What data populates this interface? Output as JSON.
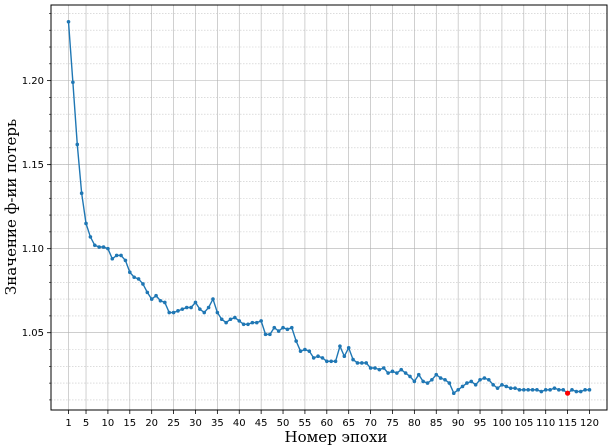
{
  "chart_data": {
    "type": "line",
    "title": "",
    "xlabel": "Номер эпохи",
    "ylabel": "Значение ф-ии потерь",
    "xlim": [
      -3,
      124
    ],
    "ylim": [
      1.004,
      1.245
    ],
    "xticks": [
      1,
      5,
      10,
      15,
      20,
      25,
      30,
      35,
      40,
      45,
      50,
      55,
      60,
      65,
      70,
      75,
      80,
      85,
      90,
      95,
      100,
      105,
      110,
      115,
      120
    ],
    "yticks": [
      1.05,
      1.1,
      1.15,
      1.2
    ],
    "ytick_labels": [
      "1.05",
      "1.10",
      "1.15",
      "1.20"
    ],
    "grid": {
      "major": true,
      "minor": true
    },
    "colors": {
      "line": "#1f77b4",
      "highlight": "#ff0000"
    },
    "series": [
      {
        "name": "",
        "x": [
          1,
          2,
          3,
          4,
          5,
          6,
          7,
          8,
          9,
          10,
          11,
          12,
          13,
          14,
          15,
          16,
          17,
          18,
          19,
          20,
          21,
          22,
          23,
          24,
          25,
          26,
          27,
          28,
          29,
          30,
          31,
          32,
          33,
          34,
          35,
          36,
          37,
          38,
          39,
          40,
          41,
          42,
          43,
          44,
          45,
          46,
          47,
          48,
          49,
          50,
          51,
          52,
          53,
          54,
          55,
          56,
          57,
          58,
          59,
          60,
          61,
          62,
          63,
          64,
          65,
          66,
          67,
          68,
          69,
          70,
          71,
          72,
          73,
          74,
          75,
          76,
          77,
          78,
          79,
          80,
          81,
          82,
          83,
          84,
          85,
          86,
          87,
          88,
          89,
          90,
          91,
          92,
          93,
          94,
          95,
          96,
          97,
          98,
          99,
          100,
          101,
          102,
          103,
          104,
          105,
          106,
          107,
          108,
          109,
          110,
          111,
          112,
          113,
          114,
          115,
          116,
          117,
          118,
          119,
          120
        ],
        "y": [
          1.235,
          1.199,
          1.162,
          1.133,
          1.115,
          1.107,
          1.102,
          1.101,
          1.101,
          1.1,
          1.094,
          1.096,
          1.096,
          1.093,
          1.086,
          1.083,
          1.082,
          1.079,
          1.074,
          1.07,
          1.072,
          1.069,
          1.068,
          1.062,
          1.062,
          1.063,
          1.064,
          1.065,
          1.065,
          1.068,
          1.064,
          1.062,
          1.065,
          1.07,
          1.062,
          1.058,
          1.056,
          1.058,
          1.059,
          1.057,
          1.055,
          1.055,
          1.056,
          1.056,
          1.057,
          1.049,
          1.049,
          1.053,
          1.051,
          1.053,
          1.052,
          1.053,
          1.045,
          1.039,
          1.04,
          1.039,
          1.035,
          1.036,
          1.035,
          1.033,
          1.033,
          1.033,
          1.042,
          1.036,
          1.041,
          1.034,
          1.032,
          1.032,
          1.032,
          1.029,
          1.029,
          1.028,
          1.029,
          1.026,
          1.027,
          1.026,
          1.028,
          1.026,
          1.024,
          1.021,
          1.025,
          1.021,
          1.02,
          1.022,
          1.025,
          1.023,
          1.022,
          1.02,
          1.014,
          1.016,
          1.018,
          1.02,
          1.021,
          1.019,
          1.022,
          1.023,
          1.022,
          1.019,
          1.017,
          1.019,
          1.018,
          1.017,
          1.017,
          1.016,
          1.016,
          1.016,
          1.016,
          1.016,
          1.015,
          1.016,
          1.016,
          1.017,
          1.016,
          1.016,
          1.014,
          1.016,
          1.015,
          1.015,
          1.016,
          1.016
        ]
      }
    ],
    "highlight_point": {
      "x": 115,
      "y": 1.014
    }
  }
}
